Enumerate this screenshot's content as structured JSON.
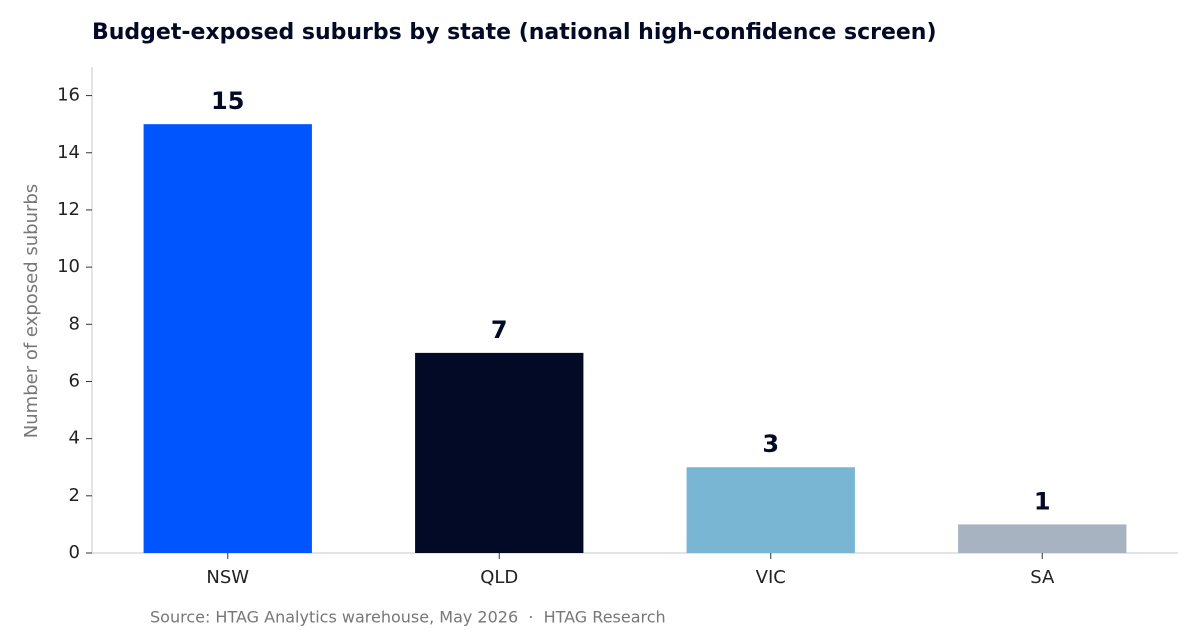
{
  "chart_data": {
    "type": "bar",
    "title": "Budget-exposed suburbs by state (national high-confidence screen)",
    "y_label": "Number of exposed suburbs",
    "categories": [
      "NSW",
      "QLD",
      "VIC",
      "SA"
    ],
    "values": [
      15,
      7,
      3,
      1
    ],
    "colors": [
      "#0055ff",
      "#030a25",
      "#78b6d4",
      "#a8b3c1"
    ],
    "ylim": [
      0,
      17
    ],
    "yticks": [
      0,
      2,
      4,
      6,
      8,
      10,
      12,
      14,
      16
    ],
    "grid": false,
    "source": "Source: HTAG Analytics warehouse, May 2026  ·  HTAG Research"
  }
}
